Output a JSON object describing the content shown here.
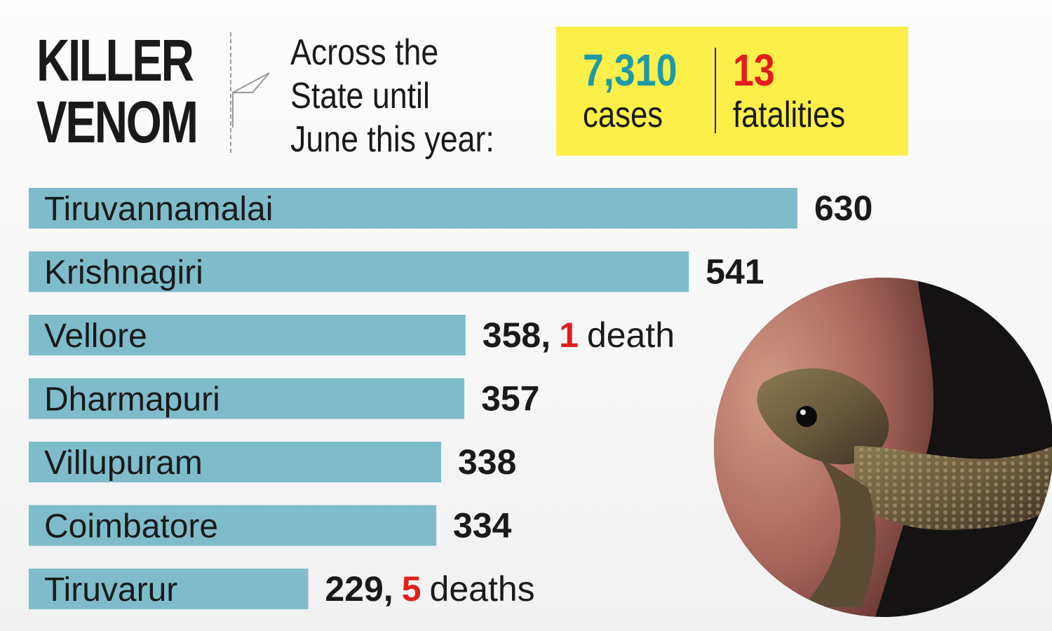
{
  "header": {
    "title_line1": "KILLER",
    "title_line2": "VENOM",
    "subtitle_line1": "Across the",
    "subtitle_line2": "State until",
    "subtitle_line3": "June this year:"
  },
  "summary": {
    "cases_value": "7,310",
    "cases_label": "cases",
    "fatalities_value": "13",
    "fatalities_label": "fatalities"
  },
  "colors": {
    "bar": "#7fbccb",
    "value_text": "#1a1a1a",
    "death_number": "#e11d1d",
    "cases_accent": "#1e9aa6",
    "summary_box": "#fcef4a"
  },
  "chart_data": {
    "type": "bar",
    "orientation": "horizontal",
    "categories": [
      "Tiruvannamalai",
      "Krishnagiri",
      "Vellore",
      "Dharmapuri",
      "Villupuram",
      "Coimbatore",
      "Tiruvarur"
    ],
    "values": [
      630,
      541,
      358,
      357,
      338,
      334,
      229
    ],
    "deaths": [
      null,
      null,
      1,
      null,
      null,
      null,
      5
    ],
    "death_labels": [
      "",
      "",
      "death",
      "",
      "",
      "",
      "deaths"
    ],
    "value_labels": [
      "630",
      "541",
      "358,",
      "357",
      "338",
      "334",
      "229,"
    ],
    "xlim": [
      0,
      630
    ],
    "grid": false,
    "legend": "none"
  },
  "image": {
    "icon": "snake-photo"
  }
}
